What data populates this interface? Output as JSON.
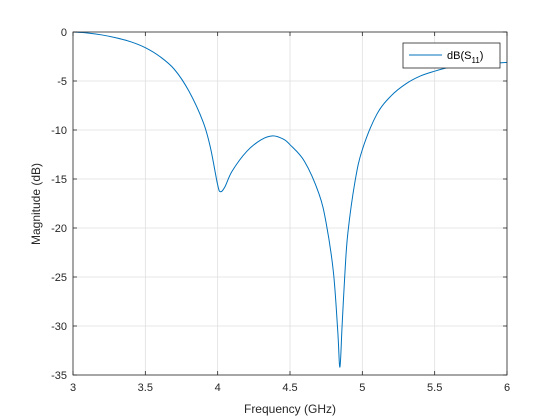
{
  "chart_data": {
    "type": "line",
    "xlabel": "Frequency (GHz)",
    "ylabel": "Magnitude (dB)",
    "xlim": [
      3,
      6
    ],
    "ylim": [
      -35,
      0
    ],
    "x_ticks": [
      "3",
      "3.5",
      "4",
      "4.5",
      "5",
      "5.5",
      "6"
    ],
    "y_ticks": [
      "0",
      "-5",
      "-10",
      "-15",
      "-20",
      "-25",
      "-30",
      "-35"
    ],
    "grid": true,
    "legend_position": "top-right",
    "legend": {
      "base": "dB(S",
      "sub": "11",
      "close": ")"
    },
    "series": [
      {
        "name": "dB(S11)",
        "color": "#0072bd",
        "points": [
          [
            3.0,
            0.0
          ],
          [
            3.1,
            -0.1
          ],
          [
            3.2,
            -0.3
          ],
          [
            3.3,
            -0.6
          ],
          [
            3.4,
            -1.0
          ],
          [
            3.5,
            -1.6
          ],
          [
            3.6,
            -2.5
          ],
          [
            3.7,
            -3.8
          ],
          [
            3.8,
            -6.0
          ],
          [
            3.9,
            -9.2
          ],
          [
            3.95,
            -11.8
          ],
          [
            4.0,
            -15.6
          ],
          [
            4.02,
            -16.3
          ],
          [
            4.05,
            -15.8
          ],
          [
            4.1,
            -14.2
          ],
          [
            4.2,
            -12.2
          ],
          [
            4.3,
            -11.0
          ],
          [
            4.38,
            -10.6
          ],
          [
            4.45,
            -10.9
          ],
          [
            4.5,
            -11.5
          ],
          [
            4.6,
            -13.2
          ],
          [
            4.7,
            -16.5
          ],
          [
            4.75,
            -19.5
          ],
          [
            4.8,
            -24.5
          ],
          [
            4.83,
            -30.5
          ],
          [
            4.845,
            -34.2
          ],
          [
            4.86,
            -30.0
          ],
          [
            4.88,
            -24.5
          ],
          [
            4.9,
            -20.5
          ],
          [
            4.95,
            -15.2
          ],
          [
            5.0,
            -12.0
          ],
          [
            5.1,
            -8.4
          ],
          [
            5.2,
            -6.5
          ],
          [
            5.3,
            -5.3
          ],
          [
            5.4,
            -4.5
          ],
          [
            5.5,
            -4.0
          ],
          [
            5.6,
            -3.6
          ],
          [
            5.7,
            -3.4
          ],
          [
            5.8,
            -3.3
          ],
          [
            5.9,
            -3.2
          ],
          [
            6.0,
            -3.1
          ]
        ]
      }
    ]
  }
}
